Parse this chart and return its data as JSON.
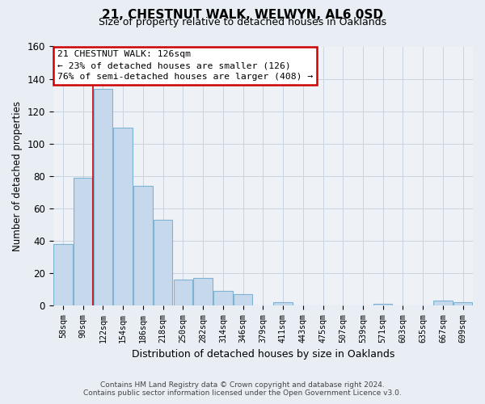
{
  "title": "21, CHESTNUT WALK, WELWYN, AL6 0SD",
  "subtitle": "Size of property relative to detached houses in Oaklands",
  "xlabel": "Distribution of detached houses by size in Oaklands",
  "ylabel": "Number of detached properties",
  "categories": [
    "58sqm",
    "90sqm",
    "122sqm",
    "154sqm",
    "186sqm",
    "218sqm",
    "250sqm",
    "282sqm",
    "314sqm",
    "346sqm",
    "379sqm",
    "411sqm",
    "443sqm",
    "475sqm",
    "507sqm",
    "539sqm",
    "571sqm",
    "603sqm",
    "635sqm",
    "667sqm",
    "699sqm"
  ],
  "values": [
    38,
    79,
    134,
    110,
    74,
    53,
    16,
    17,
    9,
    7,
    0,
    2,
    0,
    0,
    0,
    0,
    1,
    0,
    0,
    3,
    2
  ],
  "bar_color": "#c6d9ec",
  "bar_edge_color": "#7fb3d3",
  "highlight_index": 2,
  "highlight_edge_color": "#cc0000",
  "ylim": [
    0,
    160
  ],
  "yticks": [
    0,
    20,
    40,
    60,
    80,
    100,
    120,
    140,
    160
  ],
  "annotation_title": "21 CHESTNUT WALK: 126sqm",
  "annotation_line1": "← 23% of detached houses are smaller (126)",
  "annotation_line2": "76% of semi-detached houses are larger (408) →",
  "annotation_box_color": "#ffffff",
  "annotation_border_color": "#cc0000",
  "footer_line1": "Contains HM Land Registry data © Crown copyright and database right 2024.",
  "footer_line2": "Contains public sector information licensed under the Open Government Licence v3.0.",
  "bg_color": "#e8eef4",
  "plot_bg_color": "#eef2f7",
  "grid_color": "#c8d4e0"
}
